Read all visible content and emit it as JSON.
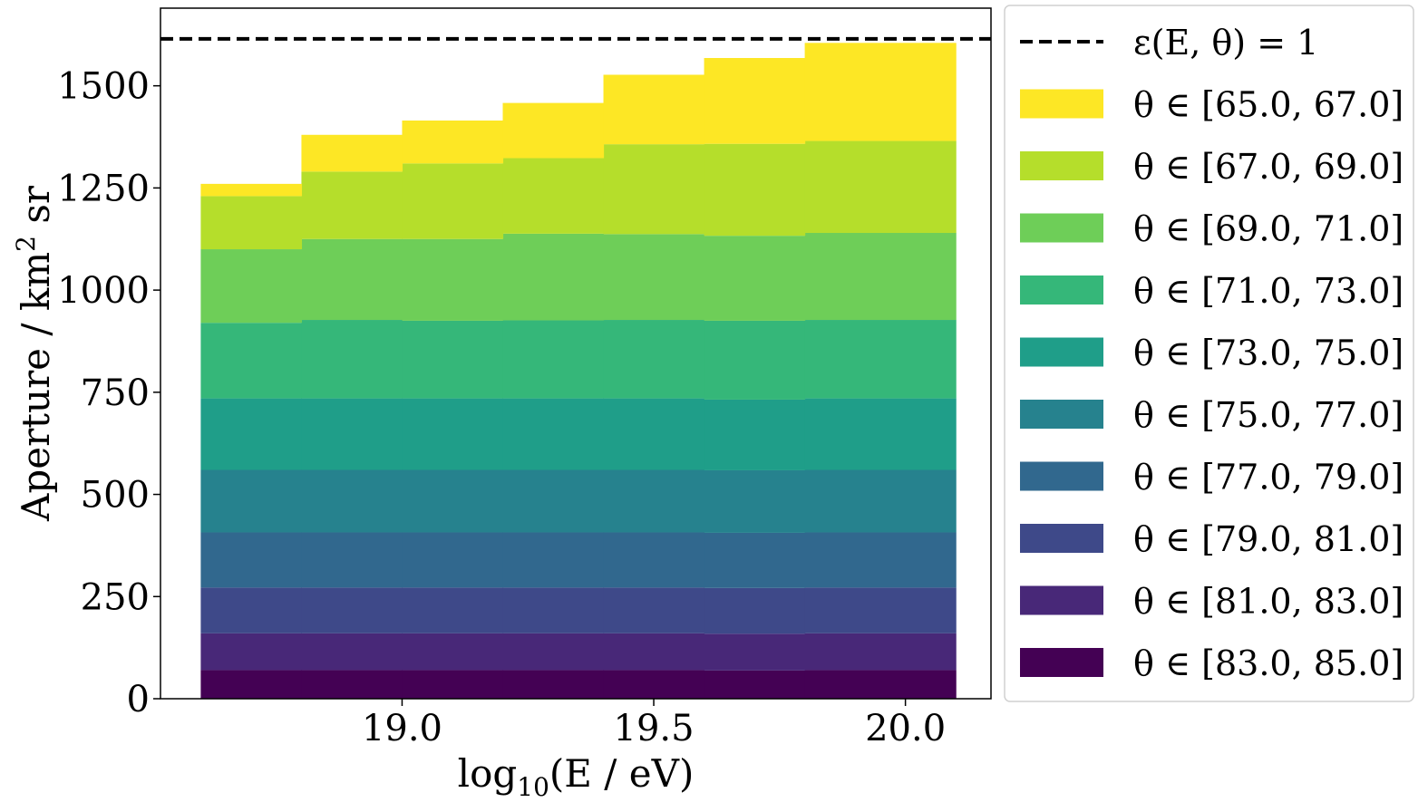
{
  "chart_data": {
    "type": "bar",
    "stacked": true,
    "histogram_step": true,
    "xlabel": "log10(E / eV)",
    "ylabel": "Aperture / km2 sr",
    "xlim": [
      18.52,
      20.17
    ],
    "ylim": [
      0,
      1690
    ],
    "xticks": [
      "19.0",
      "19.5",
      "20.0"
    ],
    "yticks": [
      "0",
      "250",
      "500",
      "750",
      "1000",
      "1250",
      "1500"
    ],
    "bin_edges": [
      18.6,
      18.8,
      19.0,
      19.2,
      19.4,
      19.6,
      19.8,
      20.1
    ],
    "legend_position": "right, outside plot",
    "reference_line": {
      "label": "ε(E, θ) = 1",
      "value": 1615,
      "style": "dashed",
      "color": "#000000"
    },
    "series": [
      {
        "name": "θ ∈ [83.0, 85.0]",
        "color": "#440154",
        "values": [
          70,
          70,
          70,
          70,
          70,
          69,
          70
        ]
      },
      {
        "name": "θ ∈ [81.0, 83.0]",
        "color": "#482878",
        "values": [
          90,
          90,
          90,
          90,
          90,
          90,
          90
        ]
      },
      {
        "name": "θ ∈ [79.0, 81.0]",
        "color": "#3e4989",
        "values": [
          112,
          112,
          112,
          112,
          112,
          112,
          112
        ]
      },
      {
        "name": "θ ∈ [77.0, 79.0]",
        "color": "#31688e",
        "values": [
          135,
          135,
          135,
          135,
          135,
          135,
          135
        ]
      },
      {
        "name": "θ ∈ [75.0, 77.0]",
        "color": "#26828e",
        "values": [
          153,
          153,
          153,
          153,
          153,
          153,
          153
        ]
      },
      {
        "name": "θ ∈ [73.0, 75.0]",
        "color": "#1f9e89",
        "values": [
          175,
          175,
          175,
          175,
          175,
          173,
          175
        ]
      },
      {
        "name": "θ ∈ [71.0, 73.0]",
        "color": "#35b779",
        "values": [
          185,
          192,
          190,
          191,
          192,
          193,
          192
        ]
      },
      {
        "name": "θ ∈ [69.0, 71.0]",
        "color": "#6ece58",
        "values": [
          180,
          198,
          200,
          212,
          210,
          208,
          213
        ]
      },
      {
        "name": "θ ∈ [67.0, 69.0]",
        "color": "#b5de2b",
        "values": [
          130,
          165,
          185,
          185,
          220,
          225,
          225
        ]
      },
      {
        "name": "θ ∈ [65.0, 67.0]",
        "color": "#fde725",
        "values": [
          30,
          90,
          105,
          135,
          170,
          210,
          240
        ]
      }
    ]
  }
}
